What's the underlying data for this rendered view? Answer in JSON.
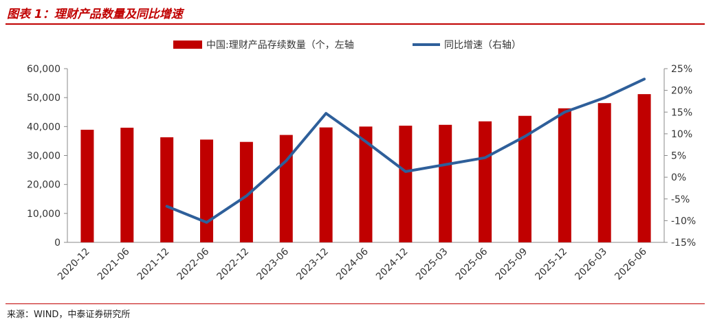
{
  "figure": {
    "title": "图表 1：理财产品数量及同比增速",
    "source": "来源：WIND，中泰证券研究所"
  },
  "colors": {
    "bar": "#c00000",
    "line": "#2e5f9a",
    "accent": "#c00000"
  },
  "chart_data": {
    "type": "bar",
    "categories": [
      "2020-12",
      "2021-06",
      "2021-12",
      "2022-06",
      "2022-12",
      "2023-06",
      "2023-12",
      "2024-06",
      "2024-12",
      "2025-03",
      "2025-06",
      "2025-09",
      "2025-12",
      "2026-03",
      "2026-06"
    ],
    "series": [
      {
        "name": "中国:理财产品存续数量（个，左轴",
        "type": "bar",
        "axis": "left",
        "values": [
          38900,
          39600,
          36300,
          35500,
          34700,
          37100,
          39700,
          40000,
          40300,
          40600,
          41800,
          43700,
          46300,
          48100,
          51200
        ]
      },
      {
        "name": "同比增速（右轴）",
        "type": "line",
        "axis": "right",
        "values": [
          null,
          null,
          -6.7,
          -10.4,
          -4.3,
          3.8,
          14.7,
          8.2,
          1.3,
          2.9,
          4.5,
          9.4,
          15.0,
          18.3,
          22.6
        ]
      }
    ],
    "y_left": {
      "min": 0,
      "max": 60000,
      "ticks": [
        "0",
        "10,000",
        "20,000",
        "30,000",
        "40,000",
        "50,000",
        "60,000"
      ]
    },
    "y_right": {
      "min": -15,
      "max": 25,
      "ticks": [
        "-15%",
        "-10%",
        "-5%",
        "0%",
        "5%",
        "10%",
        "15%",
        "20%",
        "25%"
      ]
    },
    "grid": false,
    "legend_position": "top-center"
  }
}
